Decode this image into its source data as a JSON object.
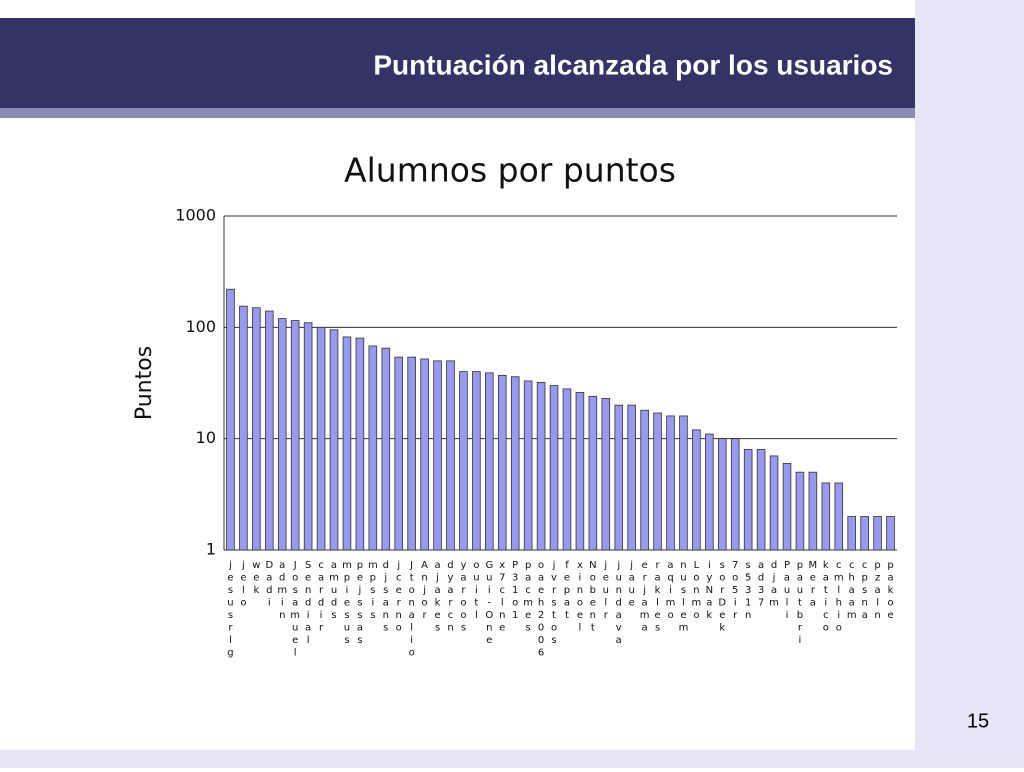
{
  "slide_title": "Puntuación alcanzada por los usuarios",
  "page_number": "15",
  "chart_data": {
    "type": "bar",
    "title": "Alumnos por puntos",
    "y_label": "Puntos",
    "categories": [
      "jesusrlg",
      "jelo",
      "wek",
      "Dadi",
      "admin",
      "Josamuel",
      "Sendial",
      "cardir",
      "amuds",
      "mpiesus",
      "pejssas",
      "mpsis",
      "djsans",
      "jcerno",
      "Jtonalio",
      "Anjor",
      "ajakes",
      "dyarcn",
      "yaroos",
      "ouitl",
      "Gui-One",
      "x7clne",
      "P31o1",
      "pacmes",
      "oaeh2006",
      "jvrstos",
      "fepat",
      "xinoel",
      "Nobent",
      "jeulr",
      "jundava",
      "jaue",
      "erjama",
      "rakles",
      "aqimo",
      "nuslem",
      "Lonmo",
      "iyNak",
      "sorDek",
      "7o5ir",
      "s531n",
      "ad37",
      "djam",
      "Pauli",
      "pautbri",
      "Mera",
      "katico",
      "cmlhio",
      "chaam",
      "cpsna",
      "pzaln",
      "pakoe"
    ],
    "values": [
      220,
      155,
      150,
      140,
      120,
      115,
      110,
      100,
      95,
      82,
      80,
      68,
      65,
      54,
      54,
      52,
      50,
      50,
      40,
      40,
      39,
      37,
      36,
      33,
      32,
      30,
      28,
      26,
      24,
      23,
      20,
      20,
      18,
      17,
      16,
      16,
      12,
      11,
      10,
      10,
      8,
      8,
      7,
      6,
      5,
      5,
      4,
      4,
      2,
      2,
      2,
      2
    ],
    "color": "#9999ee",
    "log_scale": true,
    "ylim": [
      1,
      1000
    ],
    "yticks": [
      1,
      10,
      100,
      1000
    ],
    "grid": true
  }
}
